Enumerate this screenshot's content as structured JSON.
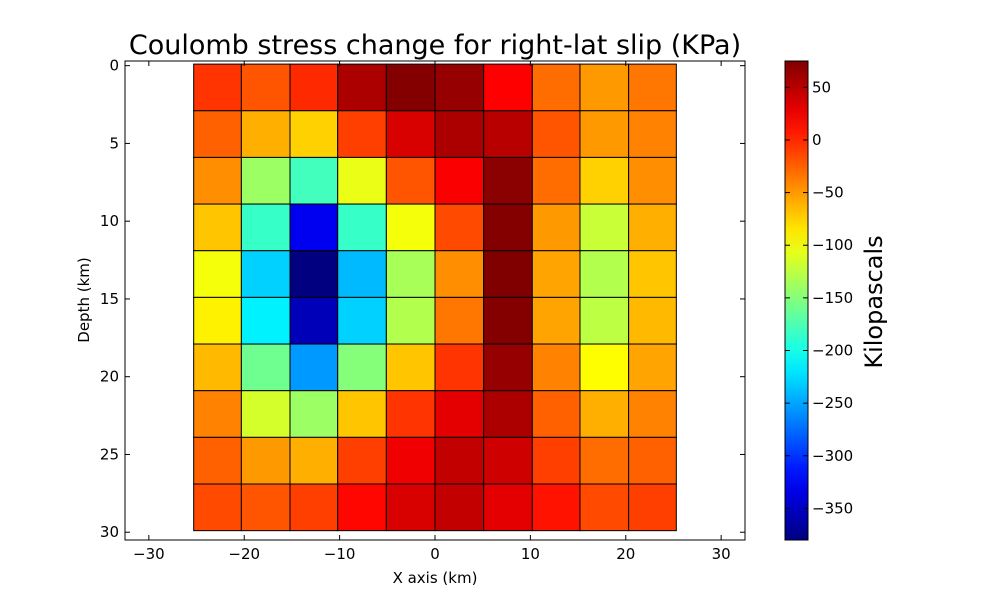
{
  "chart_data": {
    "type": "heatmap",
    "title": "Coulomb stress change for right-lat slip (KPa)",
    "xlabel": "X axis (km)",
    "ylabel": "Depth (km)",
    "colorbar_label": "Kilopascals",
    "colormap": "jet",
    "xlim": [
      -32.5,
      32.5
    ],
    "ylim": [
      30.5,
      -0.3
    ],
    "y_inverted": true,
    "grid": false,
    "x_ticks": [
      -30,
      -20,
      -10,
      0,
      10,
      20,
      30
    ],
    "y_ticks": [
      0,
      5,
      10,
      15,
      20,
      25,
      30
    ],
    "x_tick_labels": [
      "−30",
      "−20",
      "−10",
      "0",
      "10",
      "20",
      "30"
    ],
    "y_tick_labels": [
      "0",
      "5",
      "10",
      "15",
      "20",
      "25",
      "30"
    ],
    "cell_x_edges": [
      -25.3,
      -20.3,
      -15.2,
      -10.2,
      -5.1,
      0,
      5.1,
      10.2,
      15.2,
      20.3,
      25.3
    ],
    "cell_y_edges": [
      -0.1,
      2.9,
      5.9,
      8.9,
      11.9,
      14.9,
      17.9,
      20.9,
      23.9,
      26.9,
      29.9
    ],
    "value_range": [
      -380,
      75
    ],
    "colorbar_ticks": [
      50,
      0,
      -50,
      -100,
      -150,
      -200,
      -250,
      -300,
      -350
    ],
    "colorbar_tick_labels": [
      "50",
      "0",
      "−50",
      "−100",
      "−150",
      "−200",
      "−250",
      "−300",
      "−350"
    ],
    "values": [
      [
        -5,
        -20,
        0,
        55,
        73,
        65,
        18,
        -30,
        -50,
        -35
      ],
      [
        -25,
        -60,
        -75,
        -10,
        35,
        55,
        50,
        -20,
        -50,
        -40
      ],
      [
        -45,
        -140,
        -180,
        -105,
        -20,
        20,
        70,
        -30,
        -75,
        -45
      ],
      [
        -70,
        -185,
        -330,
        -185,
        -100,
        -15,
        73,
        -50,
        -120,
        -60
      ],
      [
        -100,
        -230,
        -380,
        -240,
        -135,
        -45,
        75,
        -55,
        -130,
        -70
      ],
      [
        -90,
        -215,
        -355,
        -230,
        -130,
        -35,
        73,
        -55,
        -125,
        -65
      ],
      [
        -65,
        -160,
        -255,
        -150,
        -70,
        -5,
        65,
        -40,
        -95,
        -55
      ],
      [
        -40,
        -115,
        -140,
        -70,
        -5,
        30,
        55,
        -25,
        -60,
        -40
      ],
      [
        -25,
        -50,
        -60,
        -10,
        25,
        45,
        40,
        -10,
        -30,
        -25
      ],
      [
        -15,
        -20,
        -10,
        15,
        35,
        45,
        30,
        10,
        -15,
        -10
      ]
    ]
  }
}
